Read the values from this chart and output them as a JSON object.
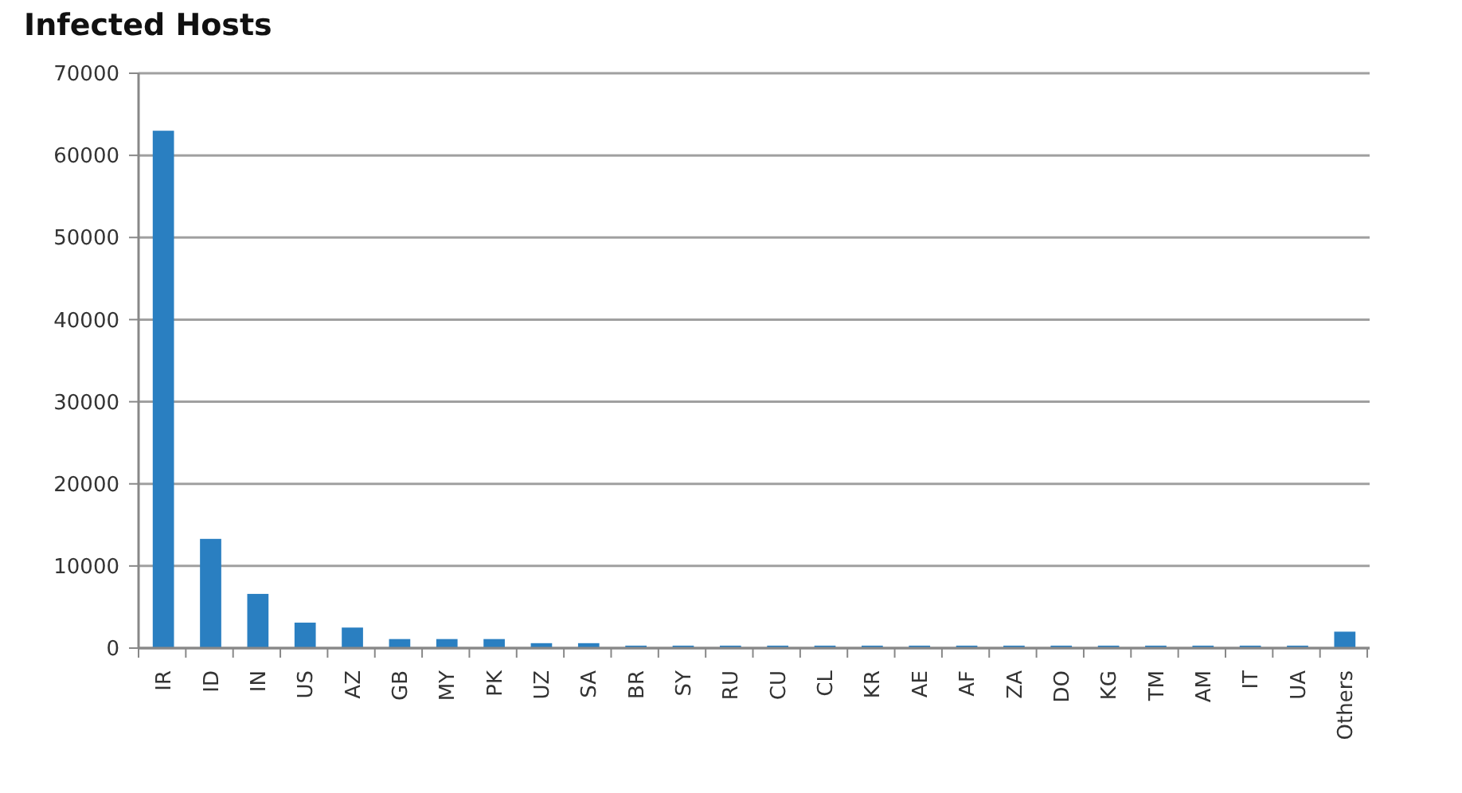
{
  "chart_data": {
    "type": "bar",
    "title": "Infected Hosts",
    "categories": [
      "IR",
      "ID",
      "IN",
      "US",
      "AZ",
      "GB",
      "MY",
      "PK",
      "UZ",
      "SA",
      "BR",
      "SY",
      "RU",
      "CU",
      "CL",
      "KR",
      "AE",
      "AF",
      "ZA",
      "DO",
      "KG",
      "TM",
      "AM",
      "IT",
      "UA",
      "Others"
    ],
    "values": [
      63000,
      13300,
      6600,
      3100,
      2500,
      1100,
      1100,
      1100,
      600,
      600,
      300,
      300,
      300,
      300,
      300,
      300,
      300,
      300,
      300,
      300,
      300,
      300,
      300,
      300,
      300,
      2000
    ],
    "color": "#2a7fc1",
    "ylim": [
      0,
      70000
    ],
    "yticks": [
      0,
      10000,
      20000,
      30000,
      40000,
      50000,
      60000,
      70000
    ],
    "grid": "y"
  }
}
